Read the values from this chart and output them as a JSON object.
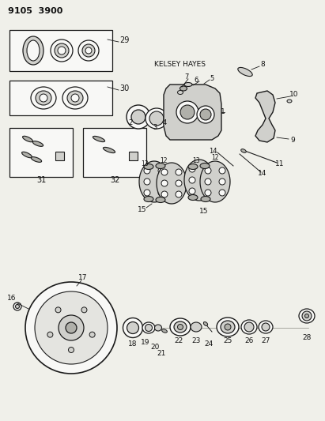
{
  "title": "9105  3900",
  "bg_color": "#f0f0ea",
  "line_color": "#1a1a1a",
  "text_color": "#111111",
  "kelsey_hayes": "KELSEY HAYES",
  "fig_w": 4.11,
  "fig_h": 5.33,
  "dpi": 100
}
